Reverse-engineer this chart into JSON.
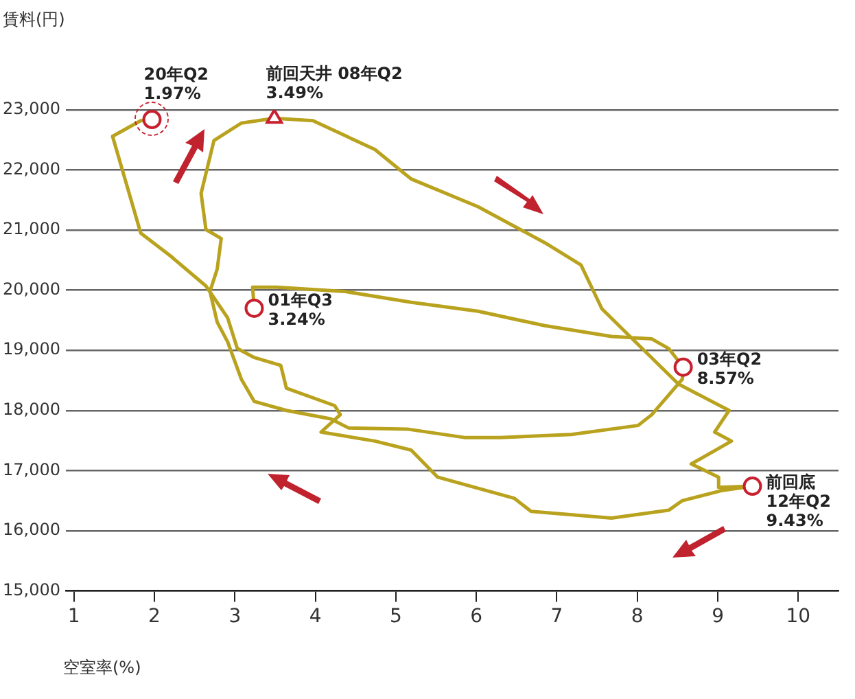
{
  "chart_data": {
    "type": "line",
    "xlabel": "空室率(%)",
    "ylabel": "賃料(円)",
    "xlim": [
      0.9,
      10.5
    ],
    "xticks": [
      1,
      2,
      3,
      4,
      5,
      6,
      7,
      8,
      9,
      10
    ],
    "ylim": [
      15000,
      23000
    ],
    "yticks": [
      {
        "value": 15000,
        "label": "15,000"
      },
      {
        "value": 16000,
        "label": "16,000"
      },
      {
        "value": 17000,
        "label": "17,000"
      },
      {
        "value": 18000,
        "label": "18,000"
      },
      {
        "value": 19000,
        "label": "19,000"
      },
      {
        "value": 20000,
        "label": "20,000"
      },
      {
        "value": 21000,
        "label": "21,000"
      },
      {
        "value": 22000,
        "label": "22,000"
      },
      {
        "value": 23000,
        "label": "23,000"
      }
    ],
    "grid": "y",
    "series": [
      {
        "color": "#b9a21e",
        "marker": "none",
        "line_style": "solid",
        "x": [
          3.24,
          3.22,
          3.52,
          4.36,
          5.19,
          6.02,
          6.85,
          7.68,
          8.18,
          8.39,
          8.57,
          8.56,
          8.18,
          8.01,
          7.18,
          6.3,
          5.85,
          5.14,
          4.41,
          4.19,
          3.64,
          3.24,
          3.08,
          2.91,
          2.78,
          2.69,
          2.78,
          2.83,
          2.64,
          2.58,
          2.74,
          3.08,
          3.49,
          3.97,
          4.74,
          5.19,
          6.02,
          6.85,
          7.3,
          7.56,
          8.06,
          8.51,
          9.14,
          8.96,
          9.17,
          8.67,
          9.01,
          9.01,
          9.43,
          9.06,
          8.56,
          8.39,
          7.68,
          6.68,
          6.47,
          5.52,
          5.19,
          4.74,
          4.07,
          4.31,
          4.24,
          3.64,
          3.57,
          3.24,
          3.03,
          2.91,
          2.64,
          2.2,
          1.83,
          1.48,
          1.83,
          1.97
        ],
        "values": [
          19700,
          20050,
          20050,
          19980,
          19800,
          19650,
          19410,
          19230,
          19190,
          19030,
          18720,
          18520,
          17930,
          17750,
          17600,
          17550,
          17550,
          17690,
          17710,
          17860,
          18000,
          18150,
          18520,
          19140,
          19470,
          19980,
          20350,
          20860,
          21010,
          21610,
          22490,
          22780,
          22860,
          22820,
          22340,
          21850,
          21390,
          20790,
          20420,
          19690,
          19030,
          18440,
          18000,
          17640,
          17490,
          17110,
          16890,
          16720,
          16740,
          16670,
          16500,
          16340,
          16210,
          16320,
          16540,
          16890,
          17340,
          17490,
          17640,
          17930,
          18080,
          18370,
          18750,
          18880,
          19030,
          19540,
          20070,
          20570,
          20950,
          22560,
          22820,
          22840
        ]
      },
      {
        "type": "scatter",
        "color": "#c8202f",
        "marker": "circle",
        "x": [
          1.97,
          3.24,
          8.57,
          9.43
        ],
        "values": [
          22840,
          19700,
          18720,
          16740
        ]
      },
      {
        "type": "scatter",
        "color": "#c8202f",
        "marker": "triangle",
        "x": [
          3.49
        ],
        "values": [
          22860
        ]
      }
    ],
    "annotations": [
      {
        "text": "20年Q2\n1.97%",
        "x": 1.97,
        "y": 22840
      },
      {
        "text": "前回天井 08年Q2\n3.49%",
        "x": 3.49,
        "y": 22860
      },
      {
        "text": "01年Q3\n3.24%",
        "x": 3.24,
        "y": 19700
      },
      {
        "text": "03年Q2\n8.57%",
        "x": 8.57,
        "y": 18720
      },
      {
        "text": "前回底\n12年Q2\n9.43%",
        "x": 9.43,
        "y": 16740
      }
    ]
  }
}
